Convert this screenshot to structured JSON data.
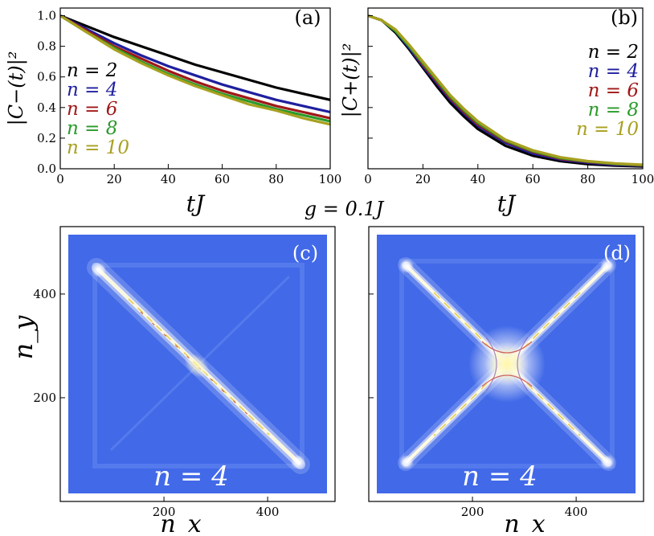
{
  "figure": {
    "center_label": "g = 0.1J"
  },
  "chart_data": [
    {
      "type": "line",
      "panel": "(a)",
      "xlabel": "tJ",
      "ylabel": "|C−(t)|²",
      "xlim": [
        0,
        100
      ],
      "ylim": [
        0,
        1.05
      ],
      "xticks": [
        0,
        20,
        40,
        60,
        80,
        100
      ],
      "yticks": [
        0.0,
        0.2,
        0.4,
        0.6,
        0.8,
        1.0
      ],
      "x": [
        0,
        10,
        20,
        30,
        40,
        50,
        60,
        70,
        80,
        90,
        100
      ],
      "series": [
        {
          "name": "n = 2",
          "color": "#000000",
          "values": [
            1.0,
            0.93,
            0.86,
            0.8,
            0.74,
            0.68,
            0.63,
            0.58,
            0.53,
            0.49,
            0.45
          ]
        },
        {
          "name": "n = 4",
          "color": "#1f1f9e",
          "values": [
            1.0,
            0.91,
            0.82,
            0.74,
            0.67,
            0.61,
            0.55,
            0.5,
            0.45,
            0.41,
            0.37
          ]
        },
        {
          "name": "n = 6",
          "color": "#a01818",
          "values": [
            1.0,
            0.9,
            0.8,
            0.72,
            0.64,
            0.57,
            0.51,
            0.46,
            0.41,
            0.37,
            0.33
          ]
        },
        {
          "name": "n = 8",
          "color": "#2a9a2a",
          "values": [
            1.0,
            0.89,
            0.79,
            0.7,
            0.62,
            0.55,
            0.49,
            0.44,
            0.39,
            0.35,
            0.31
          ]
        },
        {
          "name": "n = 10",
          "color": "#a8a020",
          "values": [
            1.0,
            0.89,
            0.78,
            0.69,
            0.61,
            0.54,
            0.48,
            0.42,
            0.38,
            0.33,
            0.29
          ]
        }
      ],
      "legend_loc": "left"
    },
    {
      "type": "line",
      "panel": "(b)",
      "xlabel": "tJ",
      "ylabel": "|C+(t)|²",
      "xlim": [
        0,
        100
      ],
      "ylim": [
        0,
        1.05
      ],
      "xticks": [
        0,
        20,
        40,
        60,
        80,
        100
      ],
      "x": [
        0,
        5,
        10,
        15,
        20,
        25,
        30,
        35,
        40,
        50,
        60,
        70,
        80,
        90,
        100
      ],
      "series": [
        {
          "name": "n = 2",
          "color": "#000000",
          "values": [
            1.0,
            0.97,
            0.89,
            0.78,
            0.66,
            0.54,
            0.43,
            0.34,
            0.26,
            0.15,
            0.085,
            0.05,
            0.03,
            0.02,
            0.015
          ]
        },
        {
          "name": "n = 4",
          "color": "#1f1f9e",
          "values": [
            1.0,
            0.97,
            0.9,
            0.79,
            0.67,
            0.56,
            0.45,
            0.36,
            0.28,
            0.17,
            0.1,
            0.06,
            0.04,
            0.025,
            0.02
          ]
        },
        {
          "name": "n = 6",
          "color": "#a01818",
          "values": [
            1.0,
            0.97,
            0.9,
            0.8,
            0.68,
            0.57,
            0.46,
            0.37,
            0.29,
            0.18,
            0.11,
            0.065,
            0.045,
            0.03,
            0.022
          ]
        },
        {
          "name": "n = 8",
          "color": "#2a9a2a",
          "values": [
            1.0,
            0.97,
            0.9,
            0.8,
            0.69,
            0.58,
            0.47,
            0.38,
            0.3,
            0.185,
            0.115,
            0.07,
            0.048,
            0.032,
            0.024
          ]
        },
        {
          "name": "n = 10",
          "color": "#a8a020",
          "values": [
            1.0,
            0.97,
            0.91,
            0.81,
            0.7,
            0.59,
            0.48,
            0.39,
            0.31,
            0.19,
            0.12,
            0.075,
            0.05,
            0.035,
            0.026
          ]
        }
      ],
      "legend_loc": "right"
    },
    {
      "type": "heatmap",
      "panel": "(c)",
      "xlabel": "n_x",
      "ylabel": "n_y",
      "xlim": [
        0,
        530
      ],
      "ylim": [
        0,
        530
      ],
      "xticks": [
        200,
        400
      ],
      "yticks": [
        200,
        400
      ],
      "pattern": "anti-diagonal",
      "annotation": "n = 4"
    },
    {
      "type": "heatmap",
      "panel": "(d)",
      "xlabel": "n_x",
      "xlim": [
        0,
        530
      ],
      "ylim": [
        0,
        530
      ],
      "xticks": [
        200,
        400
      ],
      "yticks": [
        200,
        400
      ],
      "pattern": "X-cross",
      "annotation": "n = 4"
    }
  ]
}
